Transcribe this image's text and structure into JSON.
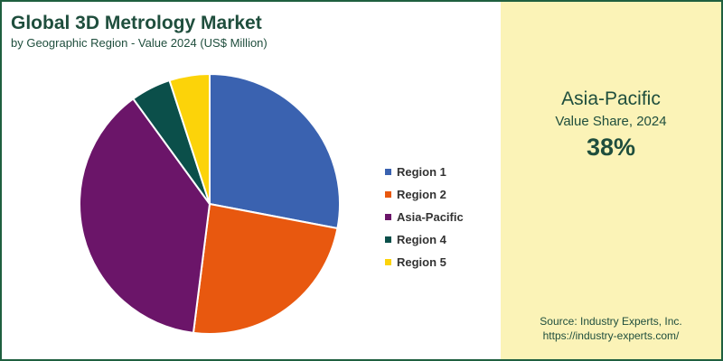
{
  "chart_data": {
    "type": "pie",
    "title": "Global 3D Metrology Market",
    "subtitle": "by Geographic Region - Value 2024 (US$ Million)",
    "slices": [
      {
        "name": "Region 1",
        "value": 28,
        "color": "#3a62b0"
      },
      {
        "name": "Region 2",
        "value": 24,
        "color": "#e8580f"
      },
      {
        "name": "Asia-Pacific",
        "value": 38,
        "color": "#6b1569"
      },
      {
        "name": "Region 4",
        "value": 5,
        "color": "#0b4f4a"
      },
      {
        "name": "Region 5",
        "value": 5,
        "color": "#fcd309"
      }
    ],
    "legend_position": "right"
  },
  "highlight": {
    "name": "Asia-Pacific",
    "subtitle": "Value Share, 2024",
    "value": "38%"
  },
  "source": {
    "line1": "Source: Industry Experts, Inc.",
    "line2": "https://industry-experts.com/"
  },
  "colors": {
    "title": "#1f4e3d",
    "panel": "#fbf3b7",
    "border": "#1f5f3f"
  }
}
